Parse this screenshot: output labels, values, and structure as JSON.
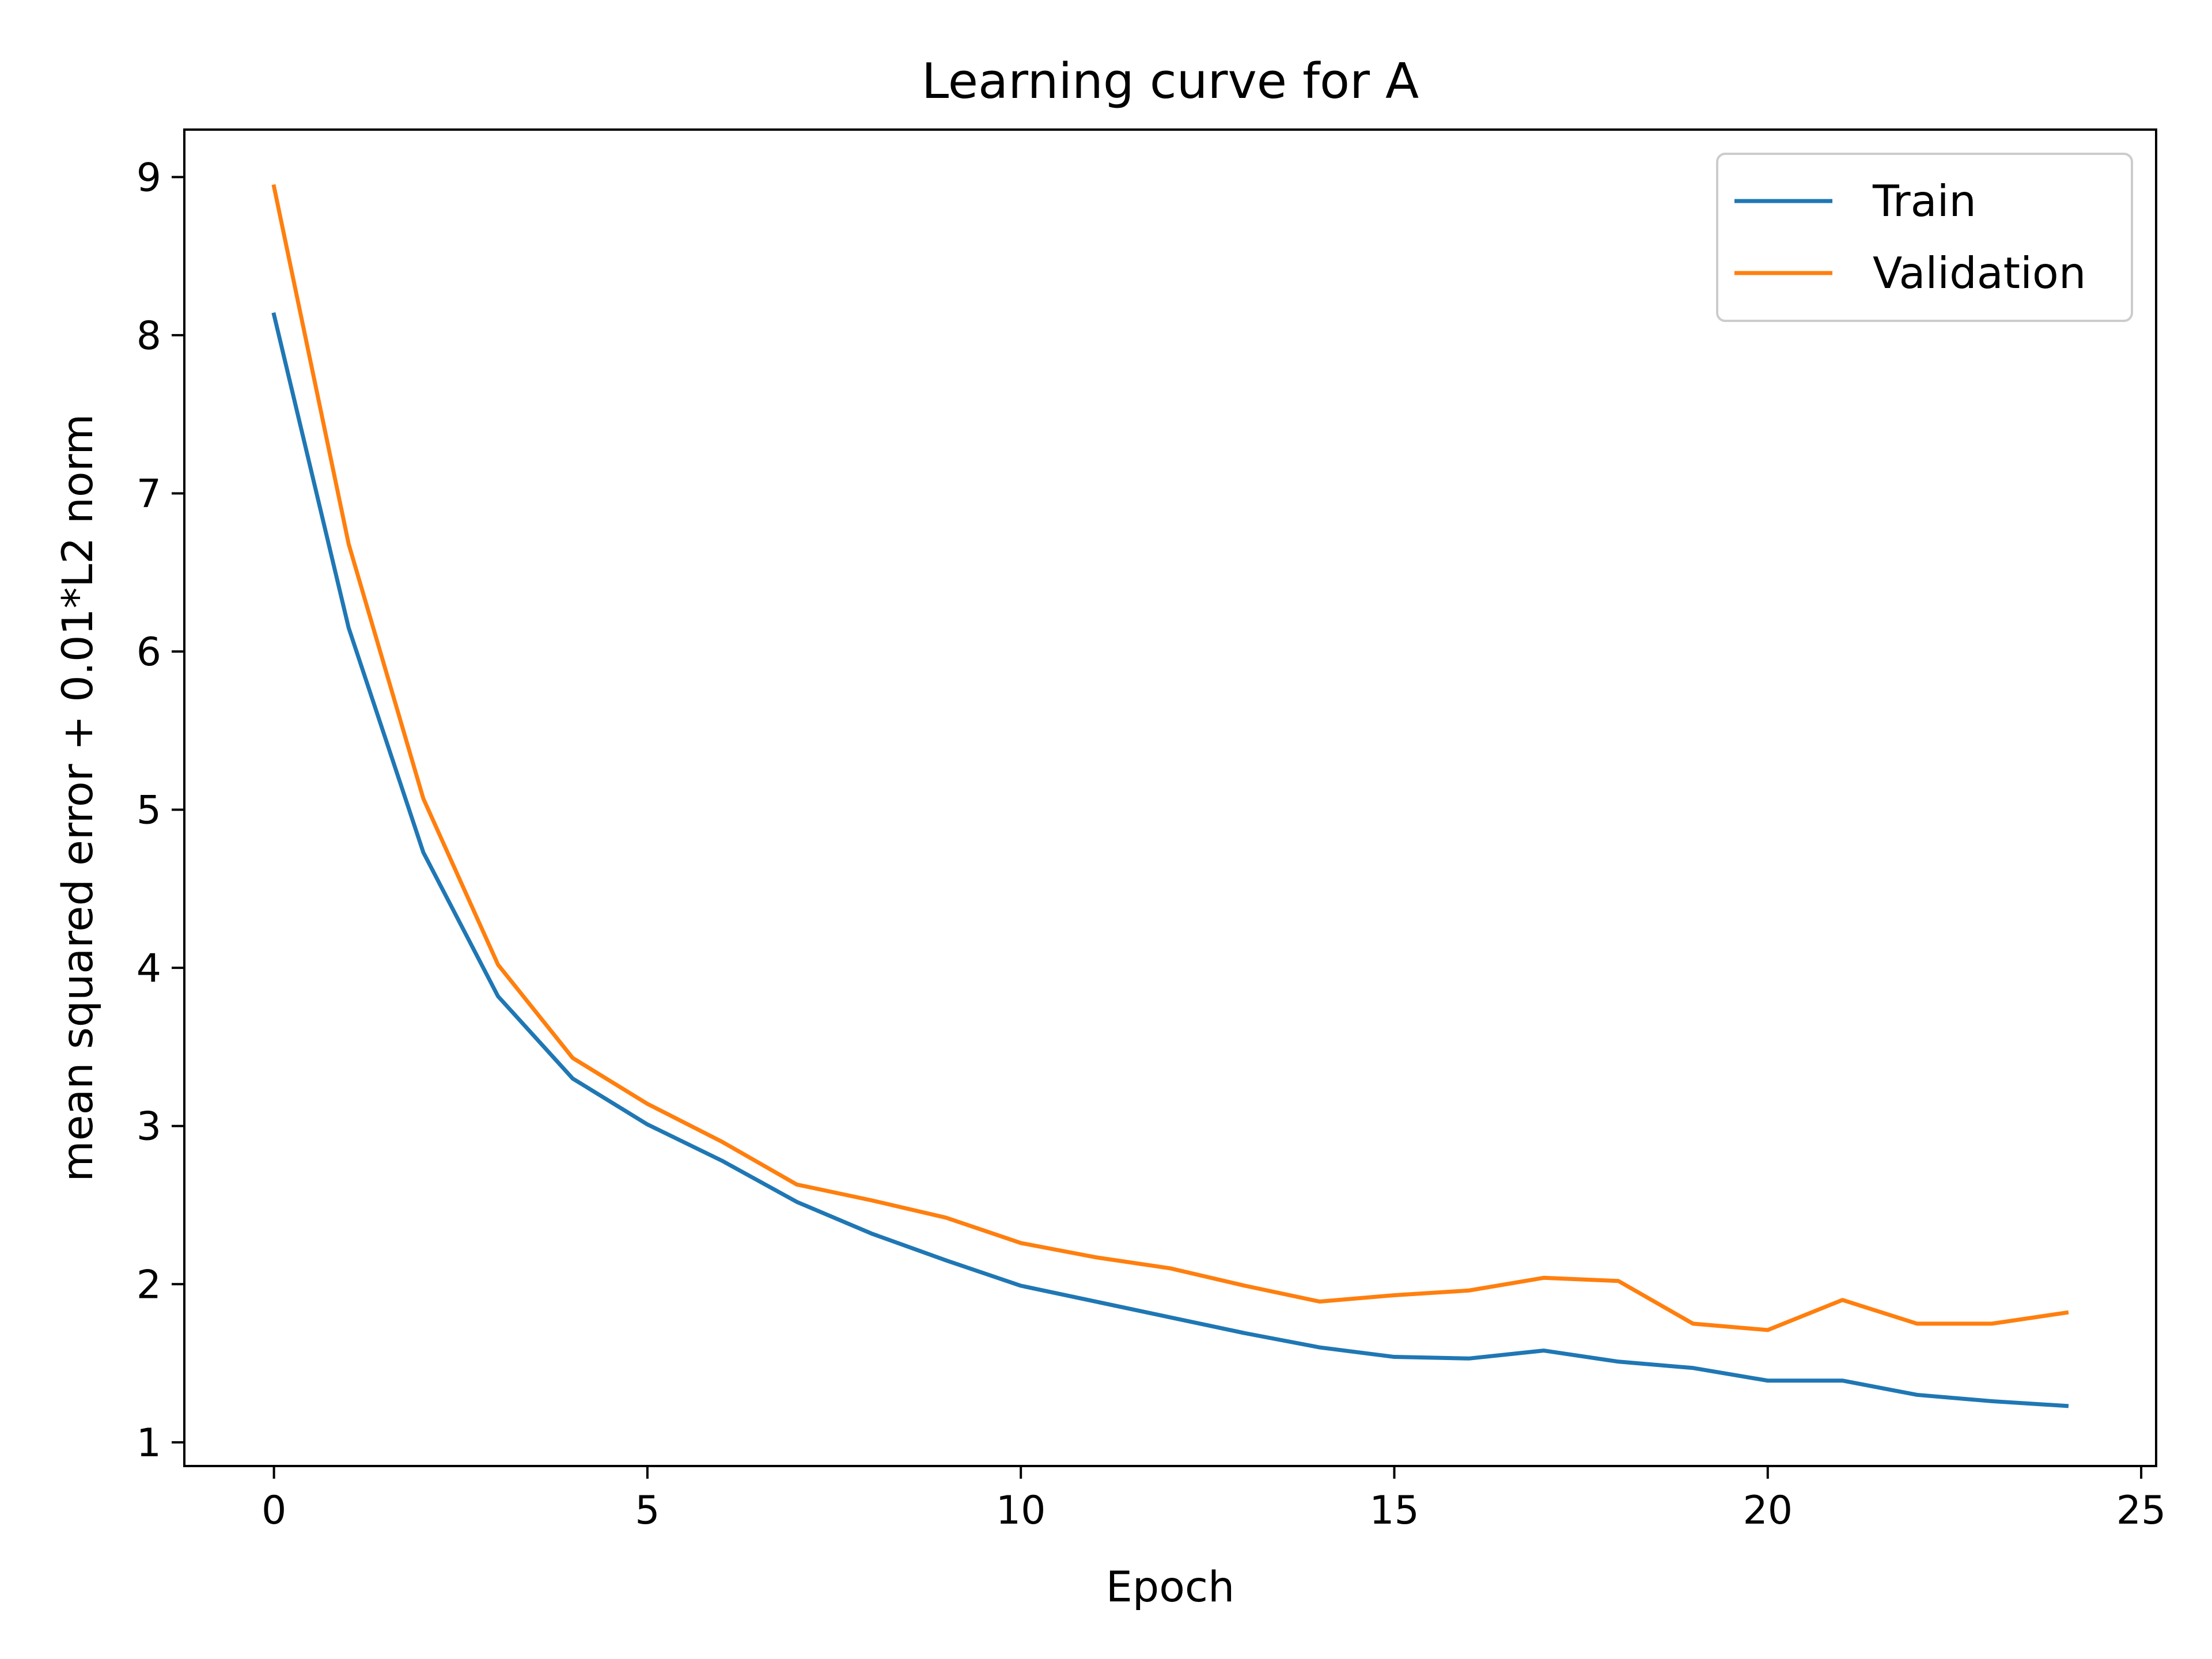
{
  "chart_data": {
    "type": "line",
    "title": "Learning curve for A",
    "xlabel": "Epoch",
    "ylabel": "mean squared error + 0.01*L2 norm",
    "xlim": [
      -1.2,
      25.2
    ],
    "ylim": [
      0.85,
      9.3
    ],
    "xticks": [
      0,
      5,
      10,
      15,
      20,
      25
    ],
    "yticks": [
      1,
      2,
      3,
      4,
      5,
      6,
      7,
      8,
      9
    ],
    "grid": false,
    "legend_position": "top-right",
    "x": [
      0,
      1,
      2,
      3,
      4,
      5,
      6,
      7,
      8,
      9,
      10,
      11,
      12,
      13,
      14,
      15,
      16,
      17,
      18,
      19,
      20,
      21,
      22,
      23,
      24
    ],
    "series": [
      {
        "name": "Train",
        "color": "#1f77b4",
        "values": [
          8.13,
          6.15,
          4.73,
          3.82,
          3.3,
          3.01,
          2.78,
          2.52,
          2.32,
          2.15,
          1.99,
          1.89,
          1.79,
          1.69,
          1.6,
          1.54,
          1.53,
          1.58,
          1.51,
          1.47,
          1.39,
          1.39,
          1.3,
          1.26,
          1.23
        ]
      },
      {
        "name": "Validation",
        "color": "#ff7f0e",
        "values": [
          8.94,
          6.68,
          5.07,
          4.02,
          3.43,
          3.14,
          2.9,
          2.63,
          2.53,
          2.42,
          2.26,
          2.17,
          2.1,
          1.99,
          1.89,
          1.93,
          1.96,
          2.04,
          2.02,
          1.75,
          1.71,
          1.9,
          1.75,
          1.75,
          1.82
        ]
      }
    ]
  }
}
